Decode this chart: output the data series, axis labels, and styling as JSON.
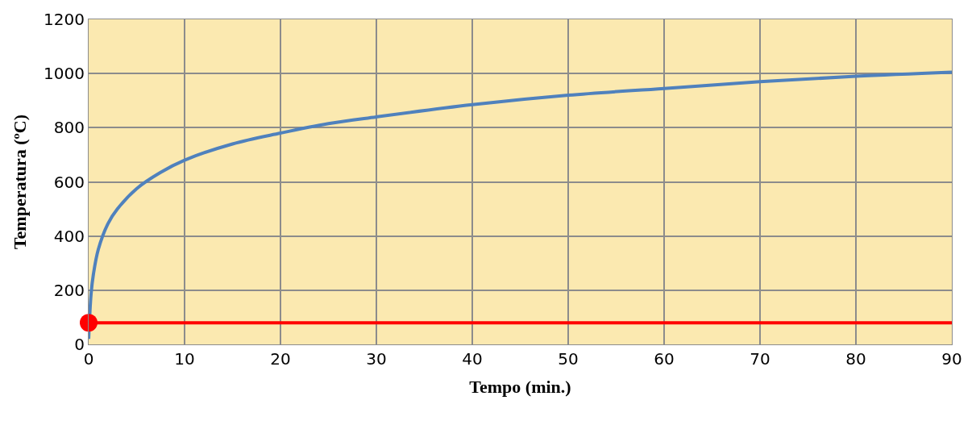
{
  "chart_data": {
    "type": "line",
    "xlabel": "Tempo (min.)",
    "ylabel": "Temperatura (ºC)",
    "xlim": [
      0,
      90
    ],
    "ylim": [
      0,
      1200
    ],
    "xticks": [
      0,
      10,
      20,
      30,
      40,
      50,
      60,
      70,
      80,
      90
    ],
    "yticks": [
      0,
      200,
      400,
      600,
      800,
      1000,
      1200
    ],
    "grid": true,
    "series": [
      {
        "type": "line",
        "color": "#4f81bd",
        "marker": "none",
        "x": [
          0,
          0.25,
          0.5,
          1,
          2,
          3,
          5,
          7.5,
          10,
          15,
          20,
          25,
          30,
          40,
          50,
          60,
          70,
          80,
          90
        ],
        "values": [
          20,
          185,
          260,
          350,
          445,
          500,
          575,
          635,
          680,
          740,
          780,
          815,
          840,
          885,
          920,
          945,
          970,
          990,
          1005
        ]
      },
      {
        "type": "line",
        "color": "#ff0000",
        "marker": "none",
        "x": [
          0,
          90
        ],
        "values": [
          80,
          80
        ]
      },
      {
        "type": "scatter",
        "color": "#ff0000",
        "marker": "circle",
        "x": [
          0
        ],
        "values": [
          80
        ]
      }
    ]
  }
}
